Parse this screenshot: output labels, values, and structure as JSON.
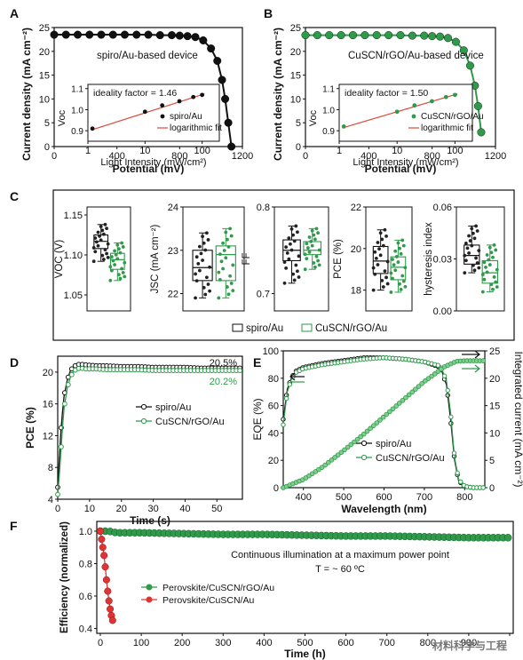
{
  "colors": {
    "black": "#111111",
    "green": "#2e9a4a",
    "green_light": "#7fcf8c",
    "red": "#e03434",
    "red_line": "#d94a3a"
  },
  "watermark": "材料科学与工程",
  "chart_data": [
    {
      "panel": "A",
      "type": "line",
      "ylabel": "Current density (mA cm⁻²)",
      "xlabel": "Potential (mV)",
      "xlim": [
        0,
        1200
      ],
      "ylim": [
        0,
        25
      ],
      "xticks": [
        0,
        400,
        800,
        1200
      ],
      "yticks": [
        0,
        5,
        10,
        15,
        20,
        25
      ],
      "label": "spiro/Au-based device",
      "series": [
        {
          "x": [
            0,
            75,
            150,
            225,
            300,
            375,
            450,
            525,
            600,
            675,
            750,
            800,
            850,
            900,
            950,
            1000,
            1040,
            1070,
            1090,
            1110,
            1130
          ],
          "y": [
            23.5,
            23.5,
            23.5,
            23.5,
            23.5,
            23.5,
            23.5,
            23.5,
            23.5,
            23.4,
            23.4,
            23.3,
            23.2,
            23.0,
            22.3,
            20.6,
            18.0,
            14.0,
            10.0,
            5.0,
            0
          ]
        }
      ],
      "inset": {
        "xlabel": "Light Intensity (mW/cm²)",
        "ylabel": "Voc",
        "ideality": "ideality factor = 1.46",
        "xscale": "log",
        "xlim": [
          1,
          200
        ],
        "ylim": [
          0.85,
          1.12
        ],
        "xticks": [
          "1",
          "10",
          "100"
        ],
        "yticks": [
          "0.9",
          "1.0",
          "1.1"
        ],
        "legend": [
          "spiro/Au",
          "logarithmic fit"
        ],
        "points": {
          "x": [
            1.2,
            10,
            20,
            40,
            70,
            100
          ],
          "y": [
            0.91,
            0.99,
            1.02,
            1.04,
            1.06,
            1.07
          ]
        },
        "fit": {
          "x": [
            1.2,
            110
          ],
          "y": [
            0.905,
            1.075
          ]
        }
      }
    },
    {
      "panel": "B",
      "type": "line",
      "ylabel": "Current density (mA cm⁻²)",
      "xlabel": "Potential (mV)",
      "xlim": [
        0,
        1200
      ],
      "ylim": [
        0,
        25
      ],
      "xticks": [
        0,
        400,
        800,
        1200
      ],
      "yticks": [
        0,
        5,
        10,
        15,
        20,
        25
      ],
      "label": "CuSCN/rGO/Au-based device",
      "series": [
        {
          "x": [
            0,
            75,
            150,
            225,
            300,
            375,
            450,
            525,
            600,
            675,
            750,
            800,
            850,
            900,
            950,
            1000,
            1040,
            1070,
            1090,
            1110
          ],
          "y": [
            23.4,
            23.4,
            23.4,
            23.4,
            23.4,
            23.4,
            23.4,
            23.4,
            23.4,
            23.3,
            23.3,
            23.2,
            23.1,
            22.8,
            22.0,
            20.2,
            17.0,
            12.8,
            8.5,
            3.0
          ]
        }
      ],
      "inset": {
        "xlabel": "Light Intensity (mW/cm²)",
        "ylabel": "Voc",
        "ideality": "ideality factor = 1.50",
        "xscale": "log",
        "xlim": [
          1,
          200
        ],
        "ylim": [
          0.85,
          1.12
        ],
        "xticks": [
          "1",
          "10",
          "100"
        ],
        "yticks": [
          "0.9",
          "1.0",
          "1.1"
        ],
        "legend": [
          "CuSCN/rGO/Au",
          "logarithmic fit"
        ],
        "points": {
          "x": [
            1.2,
            10,
            20,
            40,
            70,
            100
          ],
          "y": [
            0.92,
            0.99,
            1.02,
            1.04,
            1.06,
            1.07
          ]
        },
        "fit": {
          "x": [
            1.2,
            110
          ],
          "y": [
            0.915,
            1.075
          ]
        }
      }
    },
    {
      "panel": "C",
      "type": "box",
      "legend": [
        "spiro/Au",
        "CuSCN/rGO/Au"
      ],
      "plots": [
        {
          "ylabel": "VOC (V)",
          "ylim": [
            1.03,
            1.16
          ],
          "yticks": [
            "1.05",
            "1.10",
            "1.15"
          ],
          "boxes": [
            {
              "q1": 1.108,
              "med": 1.117,
              "q3": 1.125,
              "min": 1.092,
              "max": 1.138
            },
            {
              "q1": 1.082,
              "med": 1.094,
              "q3": 1.102,
              "min": 1.068,
              "max": 1.115
            }
          ]
        },
        {
          "ylabel": "JSC (mA cm⁻²)",
          "ylim": [
            21.6,
            24.0
          ],
          "yticks": [
            "22",
            "23",
            "24"
          ],
          "boxes": [
            {
              "q1": 22.3,
              "med": 22.6,
              "q3": 23.0,
              "min": 21.9,
              "max": 23.4
            },
            {
              "q1": 22.3,
              "med": 22.9,
              "q3": 23.1,
              "min": 21.9,
              "max": 23.5
            }
          ]
        },
        {
          "ylabel": "FF",
          "ylim": [
            0.68,
            0.8
          ],
          "yticks": [
            "0.7",
            "0.8"
          ],
          "boxes": [
            {
              "q1": 0.738,
              "med": 0.75,
              "q3": 0.762,
              "min": 0.712,
              "max": 0.778
            },
            {
              "q1": 0.745,
              "med": 0.75,
              "q3": 0.76,
              "min": 0.728,
              "max": 0.775
            }
          ]
        },
        {
          "ylabel": "PCE (%)",
          "ylim": [
            17.0,
            22.0
          ],
          "yticks": [
            "18",
            "20",
            "22"
          ],
          "boxes": [
            {
              "q1": 18.8,
              "med": 19.4,
              "q3": 20.1,
              "min": 18.0,
              "max": 20.9
            },
            {
              "q1": 18.5,
              "med": 19.1,
              "q3": 19.6,
              "min": 17.9,
              "max": 20.4
            }
          ]
        },
        {
          "ylabel": "hysteresis index",
          "ylim": [
            0.0,
            0.06
          ],
          "yticks": [
            "0.00",
            "0.03",
            "0.06"
          ],
          "boxes": [
            {
              "q1": 0.027,
              "med": 0.032,
              "q3": 0.038,
              "min": 0.022,
              "max": 0.049
            },
            {
              "q1": 0.016,
              "med": 0.022,
              "q3": 0.029,
              "min": 0.011,
              "max": 0.038
            }
          ]
        }
      ]
    },
    {
      "panel": "D",
      "type": "line",
      "xlabel": "Time (s)",
      "ylabel": "PCE (%)",
      "xlim": [
        0,
        58
      ],
      "ylim": [
        4,
        22
      ],
      "xticks": [
        0,
        10,
        20,
        30,
        40,
        50
      ],
      "yticks": [
        4,
        8,
        12,
        16,
        20
      ],
      "annotations": [
        "20.5%",
        "20.2%"
      ],
      "series": [
        {
          "name": "spiro/Au",
          "x": [
            0,
            0.5,
            1,
            1.5,
            2,
            3,
            4,
            5,
            6,
            7,
            9,
            12,
            15,
            20,
            25,
            30,
            35,
            40,
            45,
            50,
            55,
            58
          ],
          "y": [
            5.5,
            9,
            12.5,
            15,
            17,
            19,
            20.2,
            20.7,
            20.9,
            21.0,
            20.9,
            20.8,
            20.8,
            20.7,
            20.7,
            20.6,
            20.6,
            20.6,
            20.5,
            20.5,
            20.5,
            20.5
          ]
        },
        {
          "name": "CuSCN/rGO/Au",
          "x": [
            0,
            0.5,
            1,
            1.5,
            2,
            3,
            4,
            5,
            6,
            7,
            9,
            12,
            15,
            20,
            25,
            30,
            35,
            40,
            45,
            50,
            55,
            58
          ],
          "y": [
            4.6,
            7,
            10,
            13,
            15.5,
            18,
            19.4,
            20.1,
            20.4,
            20.5,
            20.4,
            20.4,
            20.3,
            20.3,
            20.3,
            20.2,
            20.2,
            20.2,
            20.2,
            20.2,
            20.2,
            20.2
          ]
        }
      ]
    },
    {
      "panel": "E",
      "type": "line",
      "xlabel": "Wavelength (nm)",
      "ylabel": "EQE (%)",
      "y2label": "Integrated current (mA cm⁻²)",
      "xlim": [
        350,
        850
      ],
      "ylim": [
        0,
        100
      ],
      "y2lim": [
        0,
        25
      ],
      "xticks": [
        400,
        500,
        600,
        700,
        800
      ],
      "yticks": [
        0,
        20,
        40,
        60,
        80,
        100
      ],
      "y2ticks": [
        0,
        5,
        10,
        15,
        20,
        25
      ],
      "series": [
        {
          "name": "spiro/Au",
          "x": [
            350,
            360,
            370,
            380,
            400,
            450,
            500,
            550,
            600,
            650,
            700,
            740,
            755,
            765,
            775,
            785,
            800,
            820,
            850
          ],
          "y": [
            50,
            72,
            80,
            85,
            88,
            91,
            93,
            95,
            95,
            94,
            92,
            88,
            75,
            50,
            20,
            5,
            1,
            0,
            0
          ]
        },
        {
          "name": "CuSCN/rGO/Au",
          "x": [
            350,
            360,
            370,
            380,
            400,
            450,
            500,
            550,
            600,
            650,
            700,
            740,
            755,
            765,
            775,
            785,
            800,
            820,
            850
          ],
          "y": [
            46,
            70,
            79,
            84,
            87,
            90,
            92,
            94,
            95,
            94,
            92,
            89,
            78,
            55,
            22,
            6,
            1,
            0,
            0
          ]
        }
      ],
      "integrated": {
        "x": [
          350,
          400,
          450,
          500,
          550,
          600,
          650,
          700,
          750,
          780,
          800,
          850
        ],
        "y": [
          0,
          1.5,
          3.9,
          6.8,
          9.8,
          13.0,
          16.2,
          19.4,
          22.1,
          23.1,
          23.2,
          23.2
        ]
      }
    },
    {
      "panel": "F",
      "type": "line",
      "xlabel": "Time (h)",
      "ylabel": "Efficiency (normalized)",
      "xlim": [
        0,
        1000
      ],
      "ylim": [
        0.37,
        1.06
      ],
      "xticks": [
        0,
        100,
        200,
        300,
        400,
        500,
        600,
        700,
        800,
        900,
        1000
      ],
      "yticks": [
        "0.4",
        "0.6",
        "0.8",
        "1.0"
      ],
      "annotation": [
        "Continuous illumination at a maximum power point",
        "T = ~ 60 ºC"
      ],
      "series": [
        {
          "name": "Perovskite/CuSCN/rGO/Au",
          "x": [
            0,
            20,
            40,
            100,
            200,
            300,
            400,
            500,
            600,
            700,
            800,
            900,
            1000
          ],
          "y": [
            1.0,
            1.0,
            0.99,
            0.99,
            0.985,
            0.98,
            0.98,
            0.975,
            0.97,
            0.97,
            0.965,
            0.96,
            0.96
          ]
        },
        {
          "name": "Perovskite/CuSCN/Au",
          "x": [
            0,
            3,
            6,
            9,
            12,
            15,
            18,
            21,
            24,
            27,
            30
          ],
          "y": [
            1.0,
            0.95,
            0.9,
            0.85,
            0.78,
            0.7,
            0.63,
            0.57,
            0.52,
            0.48,
            0.45
          ]
        }
      ]
    }
  ]
}
